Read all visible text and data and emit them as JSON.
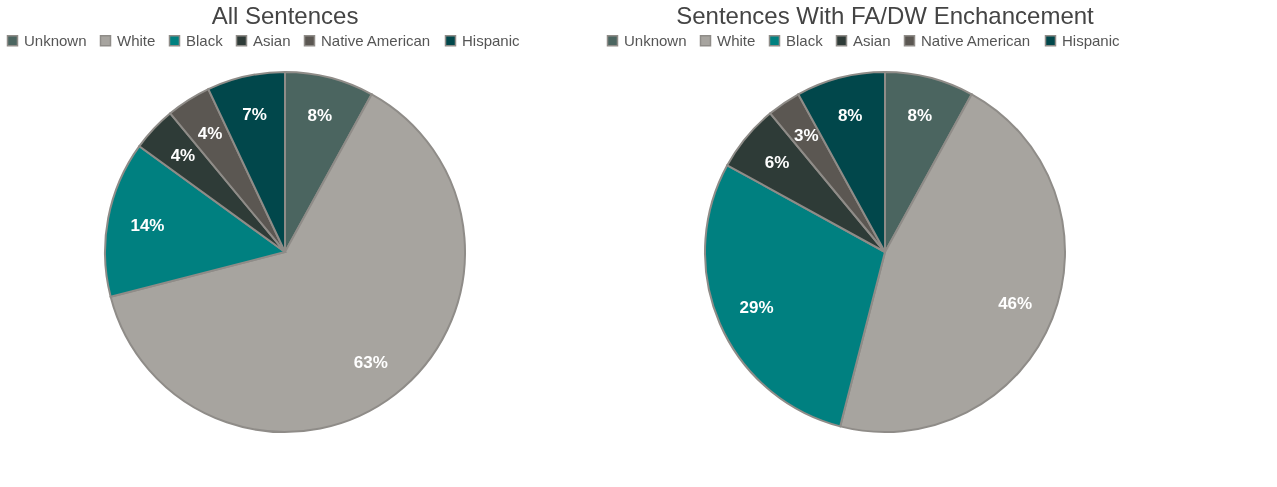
{
  "chart_data": [
    {
      "type": "pie",
      "title": "All Sentences",
      "categories": [
        "Unknown",
        "White",
        "Black",
        "Asian",
        "Native American",
        "Hispanic"
      ],
      "values": [
        8,
        63,
        14,
        4,
        4,
        7
      ],
      "value_labels": [
        "8%",
        "63%",
        "14%",
        "4%",
        "4%",
        "7%"
      ],
      "colors": [
        "#4b6560",
        "#a7a49f",
        "#008080",
        "#2e3b37",
        "#5b5752",
        "#01474b"
      ],
      "legend": "top"
    },
    {
      "type": "pie",
      "title": "Sentences With FA/DW Enchancement",
      "categories": [
        "Unknown",
        "White",
        "Black",
        "Asian",
        "Native American",
        "Hispanic"
      ],
      "values": [
        8,
        46,
        29,
        6,
        3,
        8
      ],
      "value_labels": [
        "8%",
        "46%",
        "29%",
        "6%",
        "3%",
        "8%"
      ],
      "colors": [
        "#4b6560",
        "#a7a49f",
        "#008080",
        "#2e3b37",
        "#5b5752",
        "#01474b"
      ],
      "legend": "top"
    }
  ]
}
